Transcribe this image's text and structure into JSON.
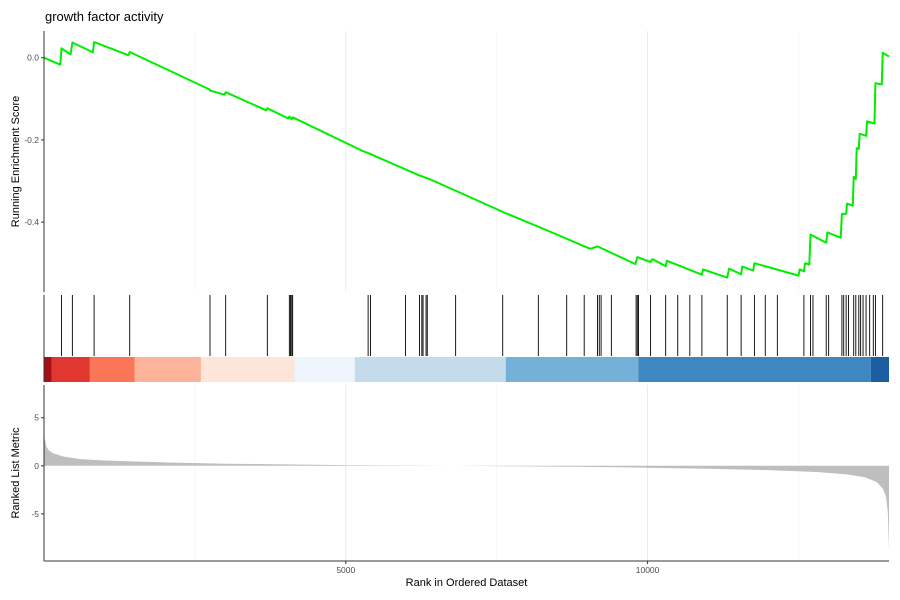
{
  "chart_data": {
    "type": "line",
    "title": "growth factor activity",
    "xlabel": "Rank in Ordered Dataset",
    "x_ticks": [
      5000,
      10000
    ],
    "xlim": [
      0,
      14000
    ],
    "colors": {
      "es_line": "#00EE00",
      "metric_fill": "#BEBEBE",
      "hit_line": "#000000"
    },
    "es_panel": {
      "ylabel": "Running Enrichment Score",
      "y_ticks": [
        0.0,
        -0.2,
        -0.4
      ],
      "y_tick_labels": [
        "0.0",
        "-0.2",
        "-0.4"
      ],
      "ylim": [
        -0.57,
        0.065
      ],
      "path": [
        [
          0,
          0.0
        ],
        [
          270,
          -0.017
        ],
        [
          290,
          0.023
        ],
        [
          440,
          0.008
        ],
        [
          470,
          0.037
        ],
        [
          810,
          0.013
        ],
        [
          830,
          0.038
        ],
        [
          1400,
          0.006
        ],
        [
          1420,
          0.014
        ],
        [
          2740,
          -0.077
        ],
        [
          2750,
          -0.08
        ],
        [
          2990,
          -0.09
        ],
        [
          3010,
          -0.084
        ],
        [
          3680,
          -0.128
        ],
        [
          3700,
          -0.123
        ],
        [
          4050,
          -0.148
        ],
        [
          4065,
          -0.143
        ],
        [
          4100,
          -0.15
        ],
        [
          4120,
          -0.145
        ],
        [
          5280,
          -0.227
        ],
        [
          5370,
          -0.232
        ],
        [
          6200,
          -0.285
        ],
        [
          6400,
          -0.296
        ],
        [
          7600,
          -0.375
        ],
        [
          8300,
          -0.418
        ],
        [
          9050,
          -0.465
        ],
        [
          9170,
          -0.459
        ],
        [
          9800,
          -0.502
        ],
        [
          9830,
          -0.485
        ],
        [
          10050,
          -0.497
        ],
        [
          10080,
          -0.49
        ],
        [
          10300,
          -0.507
        ],
        [
          10320,
          -0.494
        ],
        [
          10900,
          -0.528
        ],
        [
          10920,
          -0.515
        ],
        [
          11320,
          -0.535
        ],
        [
          11350,
          -0.513
        ],
        [
          11550,
          -0.527
        ],
        [
          11570,
          -0.508
        ],
        [
          11750,
          -0.518
        ],
        [
          11770,
          -0.5
        ],
        [
          12500,
          -0.53
        ],
        [
          12520,
          -0.515
        ],
        [
          12590,
          -0.52
        ],
        [
          12610,
          -0.5
        ],
        [
          12680,
          -0.503
        ],
        [
          12700,
          -0.43
        ],
        [
          12960,
          -0.45
        ],
        [
          12980,
          -0.425
        ],
        [
          13200,
          -0.438
        ],
        [
          13220,
          -0.38
        ],
        [
          13290,
          -0.38
        ],
        [
          13305,
          -0.355
        ],
        [
          13400,
          -0.36
        ],
        [
          13415,
          -0.29
        ],
        [
          13450,
          -0.295
        ],
        [
          13465,
          -0.22
        ],
        [
          13500,
          -0.222
        ],
        [
          13515,
          -0.185
        ],
        [
          13620,
          -0.19
        ],
        [
          13635,
          -0.155
        ],
        [
          13760,
          -0.16
        ],
        [
          13775,
          -0.062
        ],
        [
          13880,
          -0.065
        ],
        [
          13895,
          0.012
        ],
        [
          14000,
          0.003
        ]
      ]
    },
    "hits": [
      290,
      470,
      830,
      1420,
      2750,
      3010,
      3700,
      4065,
      4085,
      4105,
      4120,
      5370,
      5410,
      5990,
      6220,
      6260,
      6280,
      6330,
      6350,
      6820,
      7600,
      8190,
      8660,
      8950,
      9170,
      9200,
      9230,
      9400,
      9810,
      9830,
      9850,
      10050,
      10300,
      10500,
      10700,
      10900,
      11320,
      11550,
      11770,
      11950,
      12150,
      12590,
      12700,
      12740,
      12960,
      13000,
      13220,
      13250,
      13290,
      13330,
      13415,
      13450,
      13500,
      13530,
      13570,
      13620,
      13680,
      13740,
      13775,
      13895
    ],
    "color_bar": [
      {
        "from": 0,
        "to": 130,
        "color": "#A50F15"
      },
      {
        "from": 130,
        "to": 760,
        "color": "#E03731"
      },
      {
        "from": 760,
        "to": 1500,
        "color": "#FB7658"
      },
      {
        "from": 1500,
        "to": 2600,
        "color": "#FCB39A"
      },
      {
        "from": 2600,
        "to": 4150,
        "color": "#FEE5D9"
      },
      {
        "from": 4150,
        "to": 5150,
        "color": "#EEF4FB"
      },
      {
        "from": 5150,
        "to": 7650,
        "color": "#C3DBEA"
      },
      {
        "from": 7650,
        "to": 9850,
        "color": "#74B0D7"
      },
      {
        "from": 9850,
        "to": 13700,
        "color": "#3E87C2"
      },
      {
        "from": 13700,
        "to": 14000,
        "color": "#1C5DA3"
      }
    ],
    "metric_panel": {
      "ylabel": "Ranked List Metric",
      "y_ticks": [
        5,
        0,
        -5
      ],
      "y_tick_labels": [
        "5",
        "0",
        "-5"
      ],
      "ylim": [
        -9.9,
        8.4
      ],
      "curve": [
        [
          0,
          3.6
        ],
        [
          15,
          2.7
        ],
        [
          40,
          2.0
        ],
        [
          80,
          1.6
        ],
        [
          150,
          1.3
        ],
        [
          300,
          1.0
        ],
        [
          600,
          0.7
        ],
        [
          1000,
          0.55
        ],
        [
          2000,
          0.35
        ],
        [
          3000,
          0.22
        ],
        [
          4000,
          0.14
        ],
        [
          5000,
          0.07
        ],
        [
          6000,
          0.03
        ],
        [
          6800,
          0.0
        ],
        [
          8000,
          -0.06
        ],
        [
          9000,
          -0.12
        ],
        [
          10000,
          -0.2
        ],
        [
          11000,
          -0.3
        ],
        [
          12000,
          -0.45
        ],
        [
          12800,
          -0.65
        ],
        [
          13300,
          -0.9
        ],
        [
          13600,
          -1.2
        ],
        [
          13800,
          -1.7
        ],
        [
          13900,
          -2.4
        ],
        [
          13950,
          -3.2
        ],
        [
          13980,
          -4.8
        ],
        [
          14000,
          -8.7
        ]
      ]
    }
  }
}
